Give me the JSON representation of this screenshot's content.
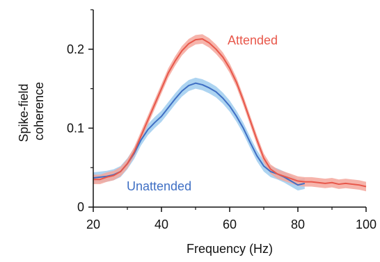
{
  "chart_data": {
    "type": "line",
    "xlabel": "Frequency (Hz)",
    "ylabel_lines": [
      "Spike-field",
      "coherence"
    ],
    "xlim": [
      20,
      100
    ],
    "ylim": [
      0,
      0.25
    ],
    "x_ticks": [
      20,
      40,
      60,
      80,
      100
    ],
    "x_tick_labels": [
      "20",
      "40",
      "60",
      "80",
      "100"
    ],
    "y_ticks": [
      0,
      0.1,
      0.2
    ],
    "y_tick_labels": [
      "0",
      "0.1",
      "0.2"
    ],
    "grid": false,
    "legend": "inline labels",
    "series": [
      {
        "name": "Attended",
        "color": "#e8574a",
        "band_color": "#f4a79c",
        "points": [
          [
            20,
            0.035
          ],
          [
            22,
            0.035
          ],
          [
            24,
            0.038
          ],
          [
            26,
            0.04
          ],
          [
            28,
            0.045
          ],
          [
            30,
            0.055
          ],
          [
            32,
            0.07
          ],
          [
            34,
            0.09
          ],
          [
            36,
            0.11
          ],
          [
            38,
            0.13
          ],
          [
            40,
            0.15
          ],
          [
            42,
            0.17
          ],
          [
            44,
            0.185
          ],
          [
            46,
            0.198
          ],
          [
            48,
            0.207
          ],
          [
            50,
            0.212
          ],
          [
            52,
            0.213
          ],
          [
            54,
            0.208
          ],
          [
            56,
            0.2
          ],
          [
            58,
            0.19
          ],
          [
            60,
            0.176
          ],
          [
            62,
            0.158
          ],
          [
            64,
            0.135
          ],
          [
            66,
            0.11
          ],
          [
            68,
            0.085
          ],
          [
            70,
            0.062
          ],
          [
            72,
            0.048
          ],
          [
            74,
            0.042
          ],
          [
            76,
            0.039
          ],
          [
            78,
            0.036
          ],
          [
            80,
            0.033
          ],
          [
            82,
            0.032
          ],
          [
            84,
            0.032
          ],
          [
            86,
            0.031
          ],
          [
            88,
            0.03
          ],
          [
            90,
            0.031
          ],
          [
            92,
            0.029
          ],
          [
            94,
            0.03
          ],
          [
            96,
            0.029
          ],
          [
            98,
            0.028
          ],
          [
            100,
            0.026
          ]
        ],
        "band": 0.006
      },
      {
        "name": "Unattended",
        "color": "#3f6fc4",
        "band_color": "#9fcdee",
        "points": [
          [
            20,
            0.037
          ],
          [
            22,
            0.038
          ],
          [
            24,
            0.039
          ],
          [
            26,
            0.041
          ],
          [
            28,
            0.045
          ],
          [
            30,
            0.055
          ],
          [
            32,
            0.068
          ],
          [
            34,
            0.085
          ],
          [
            36,
            0.098
          ],
          [
            38,
            0.107
          ],
          [
            40,
            0.115
          ],
          [
            42,
            0.126
          ],
          [
            44,
            0.137
          ],
          [
            46,
            0.147
          ],
          [
            48,
            0.154
          ],
          [
            50,
            0.157
          ],
          [
            52,
            0.155
          ],
          [
            54,
            0.151
          ],
          [
            56,
            0.146
          ],
          [
            58,
            0.138
          ],
          [
            60,
            0.128
          ],
          [
            62,
            0.115
          ],
          [
            64,
            0.1
          ],
          [
            66,
            0.082
          ],
          [
            68,
            0.065
          ],
          [
            70,
            0.052
          ],
          [
            72,
            0.045
          ],
          [
            74,
            0.042
          ],
          [
            76,
            0.038
          ],
          [
            78,
            0.033
          ],
          [
            80,
            0.028
          ],
          [
            82,
            0.03
          ]
        ],
        "band": 0.007
      }
    ]
  },
  "labels": {
    "attended": "Attended",
    "unattended": "Unattended"
  }
}
